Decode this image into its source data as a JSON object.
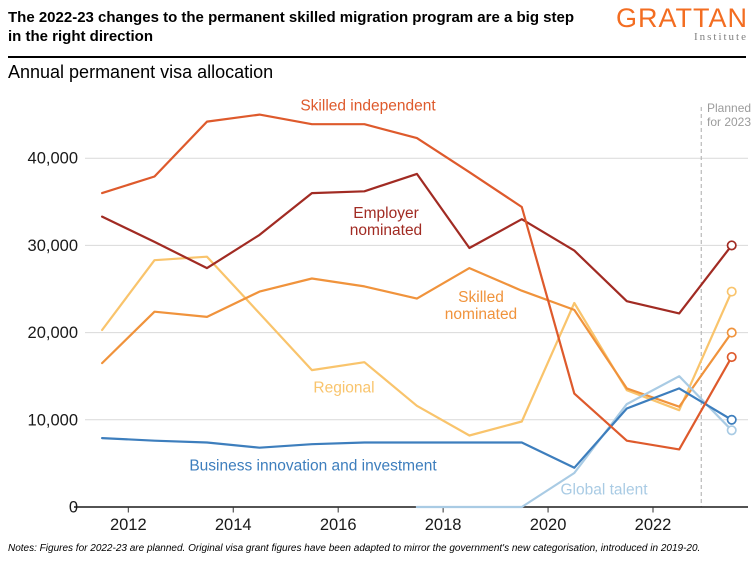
{
  "header": {
    "title": "The 2022-23 changes to the permanent skilled migration program are a big step in the right direction",
    "logo": {
      "name": "GRATTAN",
      "sub": "Institute",
      "color": "#f36d21"
    }
  },
  "subtitle": "Annual permanent visa allocation",
  "annotations": {
    "planned_label": "Planned for 2023"
  },
  "notes": "Notes: Figures for 2022-23 are planned. Original visa grant figures have been adapted to mirror the government's new categorisation, introduced in 2019-20.",
  "chart_data": {
    "type": "line",
    "title": "Annual permanent visa allocation",
    "x": [
      2011.5,
      2012.5,
      2013.5,
      2014.5,
      2015.5,
      2016.5,
      2017.5,
      2018.5,
      2019.5,
      2020.5,
      2021.5,
      2022.5,
      2023.5
    ],
    "x_tick_labels": [
      "2012",
      "2014",
      "2016",
      "2018",
      "2020",
      "2022"
    ],
    "x_tick_positions": [
      2012,
      2014,
      2016,
      2018,
      2020,
      2022
    ],
    "y_ticks": [
      {
        "label": "0",
        "value": 0
      },
      {
        "label": "10,000",
        "value": 10000
      },
      {
        "label": "20,000",
        "value": 20000
      },
      {
        "label": "30,000",
        "value": 30000
      },
      {
        "label": "40,000",
        "value": 40000
      }
    ],
    "ylim": [
      0,
      46500
    ],
    "xlim": [
      2011.1,
      2024.0
    ],
    "grid": "horizontal",
    "planned_divider_x": 2022.92,
    "legend_position": "inline-labels",
    "series": [
      {
        "name": "Skilled independent",
        "color": "#de5a2c",
        "values": [
          36000,
          37900,
          44200,
          45000,
          43900,
          43900,
          42300,
          38400,
          34400,
          13000,
          7600,
          6600,
          17200
        ]
      },
      {
        "name": "Employer nominated",
        "color": "#a12b23",
        "values": [
          33300,
          30400,
          27400,
          31200,
          36000,
          36200,
          38200,
          29700,
          33000,
          29400,
          23600,
          22200,
          30000
        ]
      },
      {
        "name": "Skilled nominated",
        "color": "#f0933c",
        "values": [
          16500,
          22400,
          21800,
          24700,
          26200,
          25300,
          23900,
          27400,
          24800,
          22600,
          13600,
          11500,
          20000
        ]
      },
      {
        "name": "Regional",
        "color": "#f9c46c",
        "values": [
          20300,
          28300,
          28700,
          22200,
          15700,
          16600,
          11600,
          8200,
          9800,
          23400,
          13400,
          11100,
          24700
        ]
      },
      {
        "name": "Business innovation and investment",
        "color": "#3d7ebd",
        "values": [
          7900,
          7600,
          7400,
          6800,
          7200,
          7400,
          7400,
          7400,
          7400,
          4500,
          11300,
          13600,
          10000
        ]
      },
      {
        "name": "Global talent",
        "color": "#a9cbe4",
        "values": [
          null,
          null,
          null,
          null,
          null,
          null,
          0,
          0,
          0,
          3900,
          11800,
          15000,
          8800
        ]
      }
    ]
  }
}
